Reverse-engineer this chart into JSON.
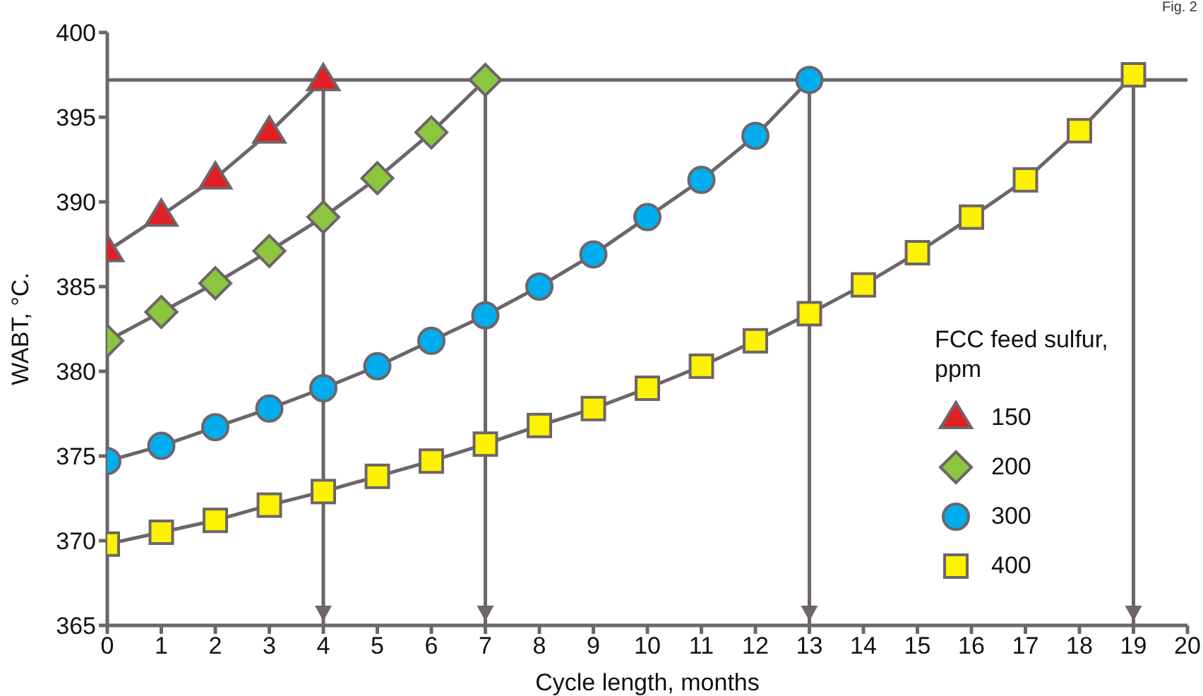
{
  "chart_data": {
    "type": "line",
    "xlabel": "Cycle length, months",
    "ylabel": "WABT, °C.",
    "legend_title": "FCC feed sulfur, ppm",
    "legend": "right",
    "annotations": [
      "Fig. 2"
    ],
    "xlim": [
      0,
      20
    ],
    "xticks": [
      0,
      1,
      2,
      3,
      4,
      5,
      6,
      7,
      8,
      9,
      10,
      11,
      12,
      13,
      14,
      15,
      16,
      17,
      18,
      19,
      20
    ],
    "ylim": [
      365,
      400
    ],
    "yticks": [
      365,
      370,
      375,
      380,
      385,
      390,
      395,
      400
    ],
    "grid": false,
    "ref_lines": [
      {
        "axis": "y",
        "value": 397.2,
        "label": null
      },
      {
        "axis": "x",
        "value": 4,
        "label": null
      },
      {
        "axis": "x",
        "value": 7,
        "label": null
      },
      {
        "axis": "x",
        "value": 13,
        "label": null
      },
      {
        "axis": "x",
        "value": 19,
        "label": null
      }
    ],
    "series": [
      {
        "name": "150",
        "color": "#e31e24",
        "marker": "triangle",
        "x": [
          0,
          1,
          2,
          3,
          4
        ],
        "values": [
          387.1,
          389.2,
          391.4,
          394.1,
          397.2
        ]
      },
      {
        "name": "200",
        "color": "#8cc63f",
        "marker": "diamond",
        "x": [
          0,
          1,
          2,
          3,
          4,
          5,
          6,
          7
        ],
        "values": [
          381.8,
          383.5,
          385.2,
          387.1,
          389.1,
          391.4,
          394.1,
          397.2
        ]
      },
      {
        "name": "300",
        "color": "#00aeef",
        "marker": "circle",
        "x": [
          0,
          1,
          2,
          3,
          4,
          5,
          6,
          7,
          8,
          9,
          10,
          11,
          12,
          13
        ],
        "values": [
          374.7,
          375.6,
          376.7,
          377.8,
          379.0,
          380.3,
          381.8,
          383.3,
          385.0,
          386.9,
          389.1,
          391.3,
          393.9,
          397.2
        ]
      },
      {
        "name": "400",
        "color": "#fff200",
        "marker": "square",
        "x": [
          0,
          1,
          2,
          3,
          4,
          5,
          6,
          7,
          8,
          9,
          10,
          11,
          12,
          13,
          14,
          15,
          16,
          17,
          18,
          19
        ],
        "values": [
          369.8,
          370.5,
          371.2,
          372.1,
          372.9,
          373.8,
          374.7,
          375.7,
          376.8,
          377.8,
          379.0,
          380.3,
          381.8,
          383.4,
          385.1,
          387.0,
          389.1,
          391.3,
          394.2,
          397.5
        ]
      }
    ]
  }
}
